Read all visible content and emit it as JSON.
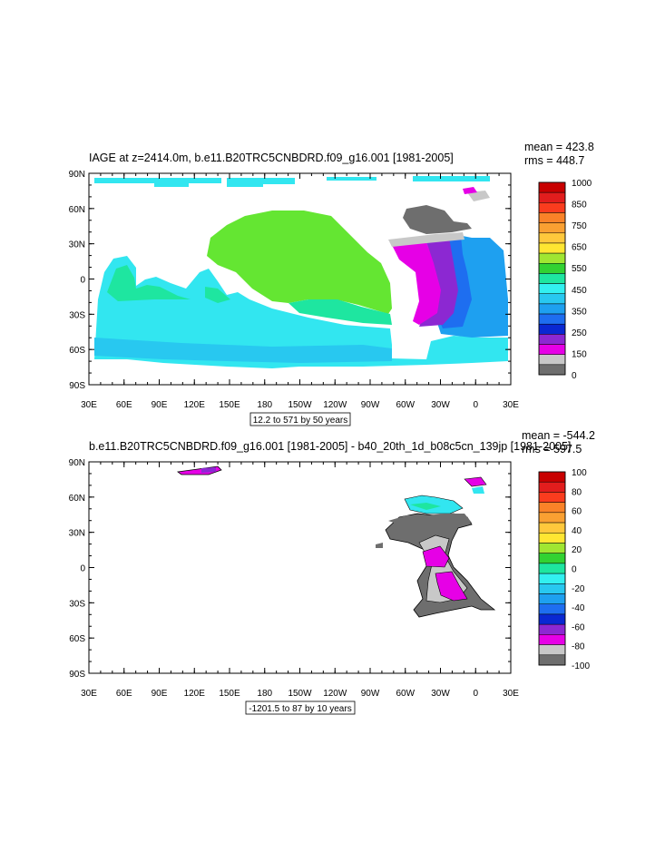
{
  "panels": [
    {
      "title": "IAGE at z=2414.0m, b.e11.B20TRC5CNBDRD.f09_g16.001 [1981-2005]",
      "stats": {
        "mean": "mean = 423.8",
        "rms": "rms = 448.7"
      },
      "info": "12.2 to 571 by 50 years",
      "lat_labels": [
        "90N",
        "60N",
        "30N",
        "0",
        "30S",
        "60S",
        "90S"
      ],
      "lon_labels": [
        "30E",
        "60E",
        "90E",
        "120E",
        "150E",
        "180",
        "150W",
        "120W",
        "90W",
        "60W",
        "30W",
        "0",
        "30E"
      ],
      "colorbar": {
        "labels": [
          "1000",
          "850",
          "750",
          "650",
          "550",
          "450",
          "350",
          "250",
          "150",
          "0"
        ],
        "colors": [
          "#c80000",
          "#e21d1d",
          "#fa3c1e",
          "#fa8228",
          "#faa032",
          "#ffc83c",
          "#ffe632",
          "#a0e632",
          "#32d232",
          "#1ee6a0",
          "#32f0f0",
          "#28c8f0",
          "#1ea0f0",
          "#1e6ef0",
          "#0a28d2",
          "#8c28d2",
          "#e600e6",
          "#c8c8c8",
          "#6e6e6e"
        ]
      }
    },
    {
      "title": "b.e11.B20TRC5CNBDRD.f09_g16.001 [1981-2005] - b40_20th_1d_b08c5cn_139jp [1981-2005]",
      "stats": {
        "mean": "mean = -544.2",
        "rms": "rms = 597.5"
      },
      "info": "-1201.5 to 87 by 10 years",
      "lat_labels": [
        "90N",
        "60N",
        "30N",
        "0",
        "30S",
        "60S",
        "90S"
      ],
      "lon_labels": [
        "30E",
        "60E",
        "90E",
        "120E",
        "150E",
        "180",
        "150W",
        "120W",
        "90W",
        "60W",
        "30W",
        "0",
        "30E"
      ],
      "colorbar": {
        "labels": [
          "100",
          "80",
          "60",
          "40",
          "20",
          "0",
          "-20",
          "-40",
          "-60",
          "-80",
          "-100"
        ],
        "colors": [
          "#c80000",
          "#e21d1d",
          "#fa3c1e",
          "#fa8228",
          "#faa032",
          "#ffc83c",
          "#ffe632",
          "#a0e632",
          "#32d232",
          "#1ee6a0",
          "#32f0f0",
          "#28c8f0",
          "#1ea0f0",
          "#1e6ef0",
          "#0a28d2",
          "#8c28d2",
          "#e600e6",
          "#c8c8c8",
          "#6e6e6e"
        ]
      }
    }
  ]
}
